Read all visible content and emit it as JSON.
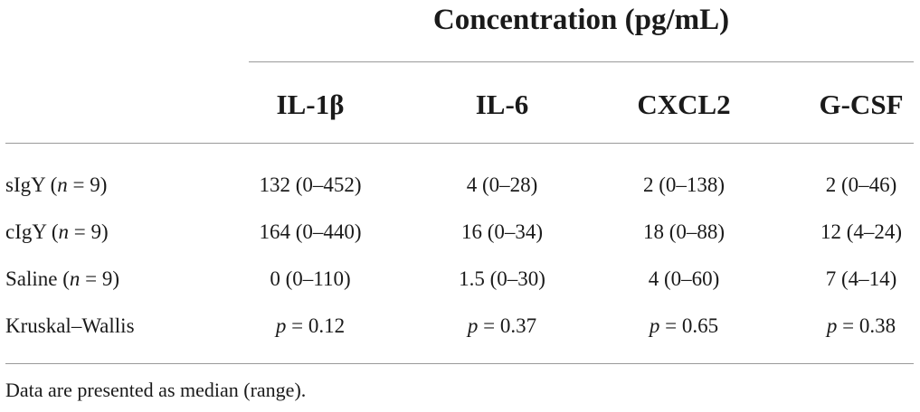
{
  "table": {
    "super_header": "Concentration (pg/mL)",
    "columns": [
      "IL-1β",
      "IL-6",
      "CXCL2",
      "G-CSF"
    ],
    "rows": [
      {
        "label_main": "sIgY",
        "label_n": "n",
        "label_eq": " = 9)",
        "label_open": " (",
        "values": [
          "132 (0–452)",
          "4 (0–28)",
          "2 (0–138)",
          "2 (0–46)"
        ]
      },
      {
        "label_main": "cIgY",
        "label_n": "n",
        "label_eq": " = 9)",
        "label_open": " (",
        "values": [
          "164 (0–440)",
          "16 (0–34)",
          "18 (0–88)",
          "12 (4–24)"
        ]
      },
      {
        "label_main": "Saline",
        "label_n": "n",
        "label_eq": " = 9)",
        "label_open": " (",
        "values": [
          "0 (0–110)",
          "1.5 (0–30)",
          "4 (0–60)",
          "7 (4–14)"
        ]
      }
    ],
    "test_row": {
      "label": "Kruskal–Wallis",
      "p_symbol": "p",
      "values": [
        " = 0.12",
        " = 0.37",
        " = 0.65",
        " = 0.38"
      ]
    },
    "footnote": "Data are presented as median (range)."
  }
}
